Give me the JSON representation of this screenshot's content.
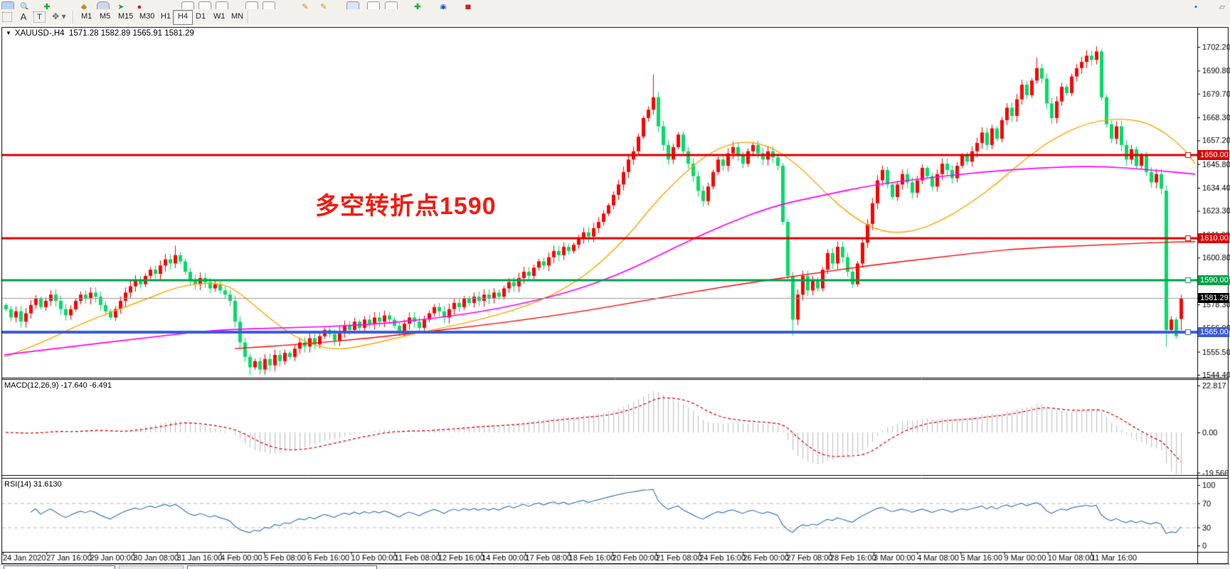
{
  "toolbar": {
    "text_tool_a": "A",
    "text_tool_t": "T",
    "timeframes": [
      {
        "label": "M1"
      },
      {
        "label": "M5"
      },
      {
        "label": "M15"
      },
      {
        "label": "M30"
      },
      {
        "label": "H1"
      },
      {
        "label": "H4",
        "active": true
      },
      {
        "label": "D1"
      },
      {
        "label": "W1"
      },
      {
        "label": "MN"
      }
    ]
  },
  "chart": {
    "title_symbol": "XAUUSD-,H4",
    "title_ohlc": "1571.28 1582.89 1565.91 1581.29",
    "annotation": {
      "text": "多空转折点1590",
      "color": "#f41a0f"
    },
    "indicator_labels": {
      "macd": "MACD(12,26,9) -17.640 -6.491",
      "rsi": "RSI(14) 31.6130"
    }
  },
  "chart_data": {
    "type": "candlestick",
    "symbol": "XAUUSD",
    "period": "H4",
    "ohlc_display": {
      "open": "1571.28",
      "high": "1582.89",
      "low": "1565.91",
      "close": "1581.29"
    },
    "colors": {
      "bull": "#ff0000",
      "bear": "#00dd66",
      "ma_fast": "#ffa500",
      "ma_mid": "#ff00ff",
      "ma_slow": "#ff0000",
      "macd_hist": "#c6c6c6",
      "macd_signal": "#dd0000",
      "rsi": "#3f7cc0"
    },
    "price_axis": {
      "ticks": [
        "1702.20",
        "1690.80",
        "1679.70",
        "1668.30",
        "1657.20",
        "1645.80",
        "1634.40",
        "1623.30",
        "1611.90",
        "1600.80",
        "1589.40",
        "1578.30",
        "1566.90",
        "1555.50",
        "1544.40"
      ]
    },
    "date_axis": {
      "labels": [
        "24 Jan 2020",
        "27 Jan 16:00",
        "29 Jan 00:00",
        "30 Jan 08:00",
        "31 Jan 16:00",
        "4 Feb 00:00",
        "5 Feb 08:00",
        "6 Feb 16:00",
        "10 Feb 00:00",
        "11 Feb 08:00",
        "12 Feb 16:00",
        "14 Feb 00:00",
        "17 Feb 08:00",
        "18 Feb 16:00",
        "20 Feb 00:00",
        "21 Feb 08:00",
        "24 Feb 16:00",
        "26 Feb 00:00",
        "27 Feb 08:00",
        "28 Feb 16:00",
        "3 Mar 00:00",
        "4 Mar 08:00",
        "5 Mar 16:00",
        "9 Mar 00:00",
        "10 Mar 08:00",
        "11 Mar 16:00"
      ]
    },
    "hlines": [
      {
        "price": 1650.0,
        "label": "1650.00",
        "color": "#dd0000",
        "width": 3
      },
      {
        "price": 1610.0,
        "label": "1610.00",
        "color": "#dd0000",
        "width": 3
      },
      {
        "price": 1590.0,
        "label": "1590.00",
        "color": "#00a14b",
        "width": 3
      },
      {
        "price": 1565.0,
        "label": "1565.00",
        "color": "#3a5bd9",
        "width": 4
      }
    ],
    "current_price": {
      "value": 1581.29,
      "label": "1581.29",
      "line_color": "#9a9a9a",
      "badge_color": "#000000"
    },
    "candles": {
      "start_price": 1578,
      "closes": [
        1576,
        1572,
        1575,
        1570,
        1574,
        1578,
        1581,
        1577,
        1580,
        1583,
        1580,
        1576,
        1573,
        1576,
        1580,
        1583,
        1581,
        1584,
        1582,
        1578,
        1575,
        1572,
        1576,
        1580,
        1584,
        1587,
        1590,
        1588,
        1592,
        1595,
        1593,
        1597,
        1600,
        1598,
        1602,
        1599,
        1594,
        1590,
        1588,
        1591,
        1589,
        1586,
        1588,
        1585,
        1583,
        1580,
        1570,
        1560,
        1553,
        1548,
        1551,
        1547,
        1552,
        1549,
        1554,
        1551,
        1555,
        1553,
        1557,
        1560,
        1558,
        1562,
        1559,
        1563,
        1566,
        1564,
        1561,
        1565,
        1568,
        1566,
        1570,
        1567,
        1571,
        1569,
        1572,
        1570,
        1573,
        1571,
        1568,
        1565,
        1569,
        1572,
        1570,
        1567,
        1571,
        1574,
        1577,
        1575,
        1572,
        1576,
        1579,
        1577,
        1581,
        1579,
        1582,
        1580,
        1583,
        1581,
        1584,
        1582,
        1586,
        1589,
        1587,
        1591,
        1594,
        1592,
        1596,
        1599,
        1597,
        1601,
        1604,
        1602,
        1606,
        1604,
        1607,
        1610,
        1613,
        1611,
        1615,
        1618,
        1622,
        1626,
        1631,
        1636,
        1642,
        1648,
        1652,
        1659,
        1668,
        1672,
        1678,
        1664,
        1655,
        1648,
        1654,
        1660,
        1652,
        1646,
        1640,
        1633,
        1628,
        1635,
        1642,
        1648,
        1645,
        1651,
        1654,
        1650,
        1646,
        1652,
        1655,
        1651,
        1648,
        1652,
        1649,
        1645,
        1618,
        1592,
        1571,
        1583,
        1592,
        1585,
        1590,
        1586,
        1595,
        1603,
        1598,
        1606,
        1601,
        1594,
        1588,
        1598,
        1608,
        1617,
        1627,
        1638,
        1643,
        1636,
        1630,
        1636,
        1641,
        1637,
        1632,
        1638,
        1644,
        1640,
        1635,
        1641,
        1646,
        1643,
        1639,
        1645,
        1650,
        1647,
        1652,
        1656,
        1661,
        1655,
        1663,
        1658,
        1667,
        1673,
        1669,
        1677,
        1684,
        1679,
        1686,
        1692,
        1687,
        1675,
        1668,
        1676,
        1683,
        1680,
        1688,
        1692,
        1695,
        1698,
        1696,
        1700,
        1678,
        1665,
        1658,
        1664,
        1655,
        1648,
        1653,
        1645,
        1650,
        1642,
        1637,
        1641,
        1634,
        1566,
        1571,
        1563,
        1581.3
      ],
      "specials": {
        "34": {
          "high": 1606.5
        },
        "49": {
          "low": 1544.3
        },
        "51": {
          "low": 1544.6
        },
        "130": {
          "high": 1689
        },
        "158": {
          "low": 1563.3
        },
        "207": {
          "high": 1697
        },
        "219": {
          "high": 1702.5
        },
        "233": {
          "open": 1633,
          "high": 1635.5,
          "low": 1558
        },
        "236": {
          "open": 1571.3,
          "high": 1582.9,
          "low": 1565.9
        }
      }
    },
    "ma_lines": [
      {
        "name": "ma-fast-orange",
        "color": "#ffa500",
        "width": 1.4,
        "points": [
          [
            6,
            1553
          ],
          [
            60,
            1560
          ],
          [
            120,
            1570
          ],
          [
            200,
            1580
          ],
          [
            250,
            1587
          ],
          [
            300,
            1589
          ],
          [
            330,
            1586
          ],
          [
            370,
            1574
          ],
          [
            420,
            1561
          ],
          [
            470,
            1556
          ],
          [
            520,
            1559
          ],
          [
            580,
            1564
          ],
          [
            650,
            1569
          ],
          [
            720,
            1575
          ],
          [
            780,
            1583
          ],
          [
            830,
            1594
          ],
          [
            880,
            1610
          ],
          [
            920,
            1627
          ],
          [
            960,
            1641
          ],
          [
            1000,
            1652
          ],
          [
            1040,
            1657
          ],
          [
            1080,
            1655
          ],
          [
            1120,
            1646
          ],
          [
            1160,
            1632
          ],
          [
            1200,
            1620
          ],
          [
            1240,
            1613
          ],
          [
            1280,
            1613
          ],
          [
            1320,
            1618
          ],
          [
            1360,
            1626
          ],
          [
            1400,
            1636
          ],
          [
            1440,
            1648
          ],
          [
            1480,
            1658
          ],
          [
            1530,
            1666
          ],
          [
            1580,
            1668
          ],
          [
            1620,
            1665
          ],
          [
            1660,
            1655
          ],
          [
            1680,
            1646
          ]
        ]
      },
      {
        "name": "ma-mid-magenta",
        "color": "#ff00ff",
        "width": 1.7,
        "points": [
          [
            6,
            1554
          ],
          [
            100,
            1558
          ],
          [
            200,
            1562
          ],
          [
            300,
            1566
          ],
          [
            400,
            1567
          ],
          [
            500,
            1568
          ],
          [
            600,
            1571
          ],
          [
            700,
            1576
          ],
          [
            800,
            1584
          ],
          [
            880,
            1594
          ],
          [
            950,
            1606
          ],
          [
            1020,
            1617
          ],
          [
            1090,
            1626
          ],
          [
            1160,
            1631
          ],
          [
            1230,
            1636
          ],
          [
            1300,
            1639
          ],
          [
            1380,
            1642
          ],
          [
            1460,
            1644
          ],
          [
            1540,
            1645
          ],
          [
            1620,
            1643
          ],
          [
            1680,
            1641
          ]
        ]
      },
      {
        "name": "ma-slow-red",
        "color": "#ff0000",
        "width": 1.3,
        "points": [
          [
            330,
            1557
          ],
          [
            420,
            1559
          ],
          [
            520,
            1562
          ],
          [
            620,
            1566
          ],
          [
            720,
            1570
          ],
          [
            820,
            1575
          ],
          [
            920,
            1581
          ],
          [
            1020,
            1587
          ],
          [
            1120,
            1592
          ],
          [
            1220,
            1597
          ],
          [
            1320,
            1601
          ],
          [
            1420,
            1605
          ],
          [
            1520,
            1606.5
          ],
          [
            1620,
            1608
          ],
          [
            1680,
            1608.5
          ]
        ]
      }
    ],
    "macd": {
      "params": [
        12,
        26,
        9
      ],
      "values_label": [
        "-17.640",
        "-6.491"
      ],
      "axis_ticks": [
        "22.817",
        "0.00",
        "-19.566"
      ]
    },
    "rsi": {
      "period": 14,
      "value": 31.613,
      "axis_ticks": [
        "100",
        "70",
        "30",
        "0"
      ],
      "levels": [
        70,
        30
      ]
    }
  }
}
